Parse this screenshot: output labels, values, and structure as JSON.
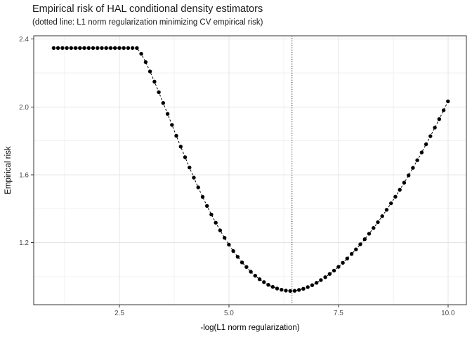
{
  "chart_data": {
    "type": "scatter",
    "title": "Empirical risk of HAL conditional density estimators",
    "subtitle": "(dotted line: L1 norm regularization minimizing CV empirical risk)",
    "xlabel": "-log(L1 norm regularization)",
    "ylabel": "Empirical risk",
    "x_tick_labels": [
      "2.5",
      "5.0",
      "7.5",
      "10.0"
    ],
    "x_ticks": [
      2.5,
      5.0,
      7.5,
      10.0
    ],
    "x_minor_ticks": [
      1.25,
      3.75,
      6.25,
      8.75
    ],
    "y_tick_labels": [
      "1.2",
      "1.6",
      "2.0",
      "2.4"
    ],
    "y_ticks": [
      1.2,
      1.6,
      2.0,
      2.4
    ],
    "y_minor_ticks": [
      1.0,
      1.4,
      1.8,
      2.2
    ],
    "xlim": [
      0.545,
      10.42
    ],
    "ylim": [
      0.835,
      2.419
    ],
    "grid": true,
    "legend": "none",
    "vline_x": 6.44,
    "vline_style": "dotted",
    "point_color": "#000000",
    "line_color": "#000000",
    "line_style": "dashed",
    "x": [
      1.0,
      1.1,
      1.2,
      1.3,
      1.4,
      1.5,
      1.6,
      1.7,
      1.8,
      1.9,
      2.0,
      2.1,
      2.2,
      2.3,
      2.4,
      2.5,
      2.6,
      2.7,
      2.8,
      2.9,
      3.0,
      3.1,
      3.2,
      3.3,
      3.4,
      3.5,
      3.6,
      3.7,
      3.8,
      3.9,
      4.0,
      4.1,
      4.2,
      4.3,
      4.4,
      4.5,
      4.6,
      4.7,
      4.8,
      4.9,
      5.0,
      5.1,
      5.2,
      5.3,
      5.4,
      5.5,
      5.6,
      5.7,
      5.8,
      5.9,
      6.0,
      6.1,
      6.2,
      6.3,
      6.4,
      6.5,
      6.6,
      6.7,
      6.8,
      6.9,
      7.0,
      7.1,
      7.2,
      7.3,
      7.4,
      7.5,
      7.6,
      7.7,
      7.8,
      7.9,
      8.0,
      8.1,
      8.2,
      8.3,
      8.4,
      8.5,
      8.6,
      8.7,
      8.8,
      8.9,
      9.0,
      9.1,
      9.2,
      9.3,
      9.4,
      9.5,
      9.6,
      9.7,
      9.8,
      9.9,
      10.0
    ],
    "y": [
      2.347,
      2.347,
      2.347,
      2.347,
      2.347,
      2.347,
      2.347,
      2.347,
      2.347,
      2.347,
      2.347,
      2.347,
      2.347,
      2.347,
      2.347,
      2.347,
      2.347,
      2.347,
      2.347,
      2.347,
      2.313,
      2.264,
      2.209,
      2.149,
      2.087,
      2.023,
      1.959,
      1.894,
      1.83,
      1.766,
      1.704,
      1.643,
      1.583,
      1.526,
      1.47,
      1.417,
      1.366,
      1.318,
      1.273,
      1.229,
      1.189,
      1.151,
      1.117,
      1.084,
      1.057,
      1.029,
      1.006,
      0.985,
      0.968,
      0.952,
      0.94,
      0.93,
      0.923,
      0.918,
      0.916,
      0.917,
      0.922,
      0.929,
      0.939,
      0.95,
      0.964,
      0.98,
      0.997,
      1.016,
      1.036,
      1.058,
      1.082,
      1.107,
      1.134,
      1.161,
      1.191,
      1.221,
      1.253,
      1.287,
      1.321,
      1.357,
      1.394,
      1.432,
      1.471,
      1.512,
      1.554,
      1.597,
      1.641,
      1.686,
      1.732,
      1.78,
      1.828,
      1.878,
      1.928,
      1.98,
      2.033
    ]
  },
  "style": {
    "panel_border_color": "#333333",
    "grid_major_color": "#e4e4e4",
    "grid_minor_color": "#f0f0f0",
    "tick_mark_color": "#333333",
    "tick_label_color": "#4d4d4d",
    "axis_title_color": "#000000",
    "point_radius": 2.7
  }
}
